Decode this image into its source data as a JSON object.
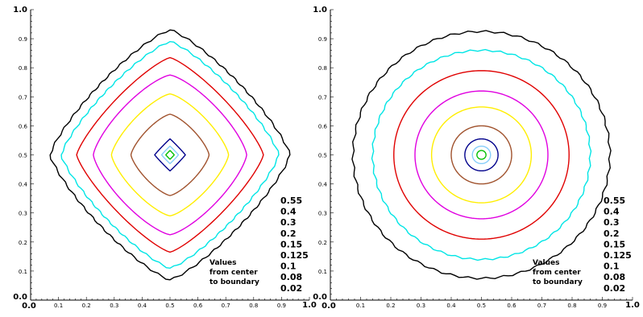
{
  "chart_data": [
    {
      "type": "contour",
      "title": "",
      "xlabel": "",
      "ylabel": "",
      "xlim": [
        0,
        1
      ],
      "ylim": [
        0,
        1
      ],
      "xticks": [
        "0.0",
        "0.1",
        "0.2",
        "0.3",
        "0.4",
        "0.5",
        "0.6",
        "0.7",
        "0.8",
        "0.9",
        "1.0"
      ],
      "yticks": [
        "0.0",
        "0.1",
        "0.2",
        "0.3",
        "0.4",
        "0.5",
        "0.6",
        "0.7",
        "0.8",
        "0.9",
        "1.0"
      ],
      "shape": "diamond",
      "contours": [
        {
          "level": "0.02",
          "color": "#000000",
          "half_width": 0.43
        },
        {
          "level": "0.08",
          "color": "#00e5e5",
          "half_width": 0.39
        },
        {
          "level": "0.1",
          "color": "#e00000",
          "half_width": 0.335
        },
        {
          "level": "0.125",
          "color": "#e000e0",
          "half_width": 0.275
        },
        {
          "level": "0.15",
          "color": "#ffee00",
          "half_width": 0.21
        },
        {
          "level": "0.2",
          "color": "#a0522d",
          "half_width": 0.14
        },
        {
          "level": "0.3",
          "color": "#00008b",
          "half_width": 0.055
        },
        {
          "level": "0.4",
          "color": "#87cefa",
          "half_width": 0.03
        },
        {
          "level": "0.55",
          "color": "#00c000",
          "half_width": 0.015
        }
      ],
      "legend_values": [
        "0.55",
        "0.4",
        "0.3",
        "0.2",
        "0.15",
        "0.125",
        "0.1",
        "0.08",
        "0.02"
      ],
      "legend_title": [
        "Values",
        "from center",
        "to boundary"
      ],
      "legend_placement": "bottom-right",
      "grid": false
    },
    {
      "type": "contour",
      "title": "",
      "xlabel": "",
      "ylabel": "",
      "xlim": [
        0,
        1
      ],
      "ylim": [
        0,
        1
      ],
      "xticks": [
        "0.0",
        "0.1",
        "0.2",
        "0.3",
        "0.4",
        "0.5",
        "0.6",
        "0.7",
        "0.8",
        "0.9",
        "1.0"
      ],
      "yticks": [
        "0.0",
        "0.1",
        "0.2",
        "0.3",
        "0.4",
        "0.5",
        "0.6",
        "0.7",
        "0.8",
        "0.9",
        "1.0"
      ],
      "shape": "circle",
      "contours": [
        {
          "level": "0.02",
          "color": "#000000",
          "half_width": 0.425
        },
        {
          "level": "0.08",
          "color": "#00e5e5",
          "half_width": 0.36
        },
        {
          "level": "0.1",
          "color": "#e00000",
          "half_width": 0.29
        },
        {
          "level": "0.125",
          "color": "#e000e0",
          "half_width": 0.22
        },
        {
          "level": "0.15",
          "color": "#ffee00",
          "half_width": 0.165
        },
        {
          "level": "0.2",
          "color": "#a0522d",
          "half_width": 0.1
        },
        {
          "level": "0.3",
          "color": "#00008b",
          "half_width": 0.055
        },
        {
          "level": "0.4",
          "color": "#87cefa",
          "half_width": 0.03
        },
        {
          "level": "0.55",
          "color": "#00c000",
          "half_width": 0.015
        }
      ],
      "legend_values": [
        "0.55",
        "0.4",
        "0.3",
        "0.2",
        "0.15",
        "0.125",
        "0.1",
        "0.08",
        "0.02"
      ],
      "legend_title": [
        "Values",
        "from center",
        "to boundary"
      ],
      "legend_placement": "bottom-right",
      "grid": false
    }
  ]
}
